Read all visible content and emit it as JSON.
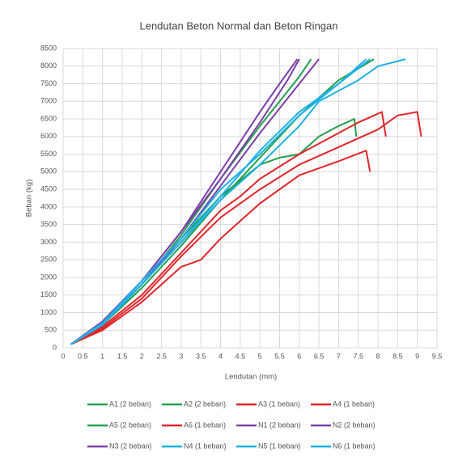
{
  "chart_data": {
    "type": "line",
    "title": "Lendutan Beton Normal dan Beton Ringan",
    "x_label": "Lendutan (mm)",
    "y_label": "Beban (kg)",
    "xlim": [
      0,
      9.5
    ],
    "xticks": [
      0,
      0.5,
      1,
      1.5,
      2,
      2.5,
      3,
      3.5,
      4,
      4.5,
      5,
      5.5,
      6,
      6.5,
      7,
      7.5,
      8,
      8.5,
      9,
      9.5
    ],
    "ylim": [
      0,
      8500
    ],
    "yticks": [
      0,
      500,
      1000,
      1500,
      2000,
      2500,
      3000,
      3500,
      4000,
      4500,
      5000,
      5500,
      6000,
      6500,
      7000,
      7500,
      8000,
      8500
    ],
    "grid": true,
    "legend": "bottom",
    "series": [
      {
        "name": "A1 (2 beban)",
        "color": "#22a04b",
        "x": [
          0.2,
          1,
          2,
          3,
          4,
          5,
          6,
          6.3
        ],
        "values": [
          100,
          700,
          1800,
          3200,
          4800,
          6300,
          7700,
          8200
        ]
      },
      {
        "name": "A2 (2 beban)",
        "color": "#22a04b",
        "x": [
          0.2,
          1,
          2,
          3,
          4,
          5,
          6,
          7,
          7.9
        ],
        "values": [
          100,
          650,
          1700,
          2900,
          4200,
          5400,
          6600,
          7600,
          8200
        ]
      },
      {
        "name": "A3 (1 beban)",
        "color": "#e0262a",
        "x": [
          0.2,
          1,
          2,
          3,
          3.5,
          4,
          4.5,
          5,
          6,
          7,
          7.7,
          7.8
        ],
        "values": [
          100,
          500,
          1300,
          2300,
          2500,
          3100,
          3600,
          4100,
          4900,
          5300,
          5600,
          5000
        ]
      },
      {
        "name": "A4 (1 beban)",
        "color": "#e0262a",
        "x": [
          0.2,
          1,
          2,
          3,
          4,
          5,
          6,
          7,
          8,
          8.5,
          9,
          9.1
        ],
        "values": [
          100,
          550,
          1400,
          2600,
          3700,
          4500,
          5200,
          5700,
          6200,
          6600,
          6700,
          6000
        ]
      },
      {
        "name": "A5 (2 beban)",
        "color": "#22a04b",
        "x": [
          0.2,
          1,
          2,
          3,
          4,
          5,
          5.5,
          6,
          6.5,
          7,
          7.4,
          7.45
        ],
        "values": [
          100,
          650,
          1800,
          3100,
          4300,
          5200,
          5400,
          5500,
          6000,
          6300,
          6500,
          6000
        ]
      },
      {
        "name": "A6 (1 beban)",
        "color": "#e0262a",
        "x": [
          0.2,
          1,
          2,
          3,
          4,
          4.5,
          5,
          6,
          7,
          7.5,
          8.1,
          8.2
        ],
        "values": [
          100,
          600,
          1500,
          2700,
          3900,
          4300,
          4800,
          5500,
          6100,
          6400,
          6700,
          6000
        ]
      },
      {
        "name": "N1 (2 beban)",
        "color": "#7b3fa8",
        "x": [
          0.2,
          1,
          2,
          2.5,
          3,
          4,
          5,
          5.5,
          5.95
        ],
        "values": [
          100,
          750,
          1900,
          2600,
          3300,
          5000,
          6700,
          7500,
          8200
        ]
      },
      {
        "name": "N2 (2 beban)",
        "color": "#7b3fa8",
        "x": [
          0.2,
          1,
          2,
          3,
          4,
          5,
          6,
          6.5
        ],
        "values": [
          100,
          700,
          1800,
          3100,
          4600,
          6100,
          7500,
          8200
        ]
      },
      {
        "name": "N3 (2 beban)",
        "color": "#7b3fa8",
        "x": [
          0.2,
          1,
          2,
          3,
          4,
          5,
          5.7,
          6
        ],
        "values": [
          100,
          700,
          1900,
          3300,
          4800,
          6400,
          7600,
          8200
        ]
      },
      {
        "name": "N4 (1 beban)",
        "color": "#1eb1e6",
        "x": [
          0.2,
          1,
          2,
          3,
          4,
          5,
          6,
          7,
          7.8
        ],
        "values": [
          100,
          700,
          1900,
          3100,
          4500,
          5500,
          6600,
          7500,
          8200
        ]
      },
      {
        "name": "N5 (1 beban)",
        "color": "#1eb1e6",
        "x": [
          0.2,
          1,
          2,
          3,
          4,
          5,
          6,
          6.5,
          7.5,
          8,
          8.7
        ],
        "values": [
          100,
          700,
          1800,
          3000,
          4200,
          5200,
          6300,
          7000,
          7600,
          8000,
          8200
        ]
      },
      {
        "name": "N6 (1 beban)",
        "color": "#1eb1e6",
        "x": [
          0.2,
          1,
          2,
          3,
          4,
          5,
          6,
          7,
          7.7
        ],
        "values": [
          100,
          650,
          1800,
          3000,
          4300,
          5600,
          6700,
          7500,
          8200
        ]
      }
    ]
  }
}
